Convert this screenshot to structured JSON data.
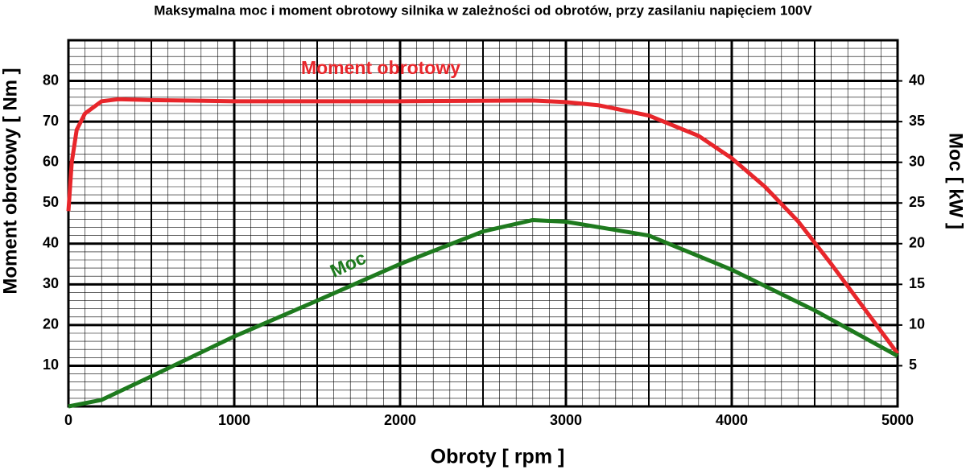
{
  "chart_data": {
    "type": "line",
    "title": "Maksymalna moc i moment obrotowy silnika w zależności od obrotów, przy zasilaniu napięciem 100V",
    "x_label": "Obroty [ rpm ]",
    "y_label": "Moment obrotowy [ Nm ]",
    "y2_label": "Moc [ kW ]",
    "xlim": [
      0,
      5000
    ],
    "xticks": [
      0,
      1000,
      2000,
      3000,
      4000,
      5000
    ],
    "ylim": [
      0,
      90
    ],
    "yticks": [
      10,
      20,
      30,
      40,
      50,
      60,
      70,
      80
    ],
    "y2lim": [
      0,
      45
    ],
    "y2ticks": [
      5,
      10,
      15,
      20,
      25,
      30,
      35,
      40
    ],
    "grid": true,
    "series": [
      {
        "name": "Moment obrotowy",
        "color": "#e8262b",
        "axis": "y",
        "x": [
          0,
          20,
          50,
          100,
          200,
          300,
          500,
          1000,
          2000,
          2800,
          3000,
          3200,
          3500,
          3800,
          4000,
          4200,
          4400,
          4600,
          4800,
          5000
        ],
        "values": [
          48,
          60,
          68,
          72,
          75,
          75.5,
          75.3,
          75,
          75,
          75.2,
          74.8,
          74,
          71.5,
          66.5,
          61,
          54,
          45.5,
          35,
          24,
          13
        ]
      },
      {
        "name": "Moc",
        "color": "#1e7a1e",
        "axis": "y2",
        "x": [
          0,
          200,
          500,
          1000,
          1500,
          2000,
          2500,
          2800,
          3000,
          3500,
          4000,
          4500,
          5000
        ],
        "values": [
          0,
          0.8,
          3.7,
          8.6,
          13,
          17.5,
          21.5,
          22.9,
          22.7,
          21,
          16.8,
          11.8,
          6.2
        ]
      }
    ]
  }
}
